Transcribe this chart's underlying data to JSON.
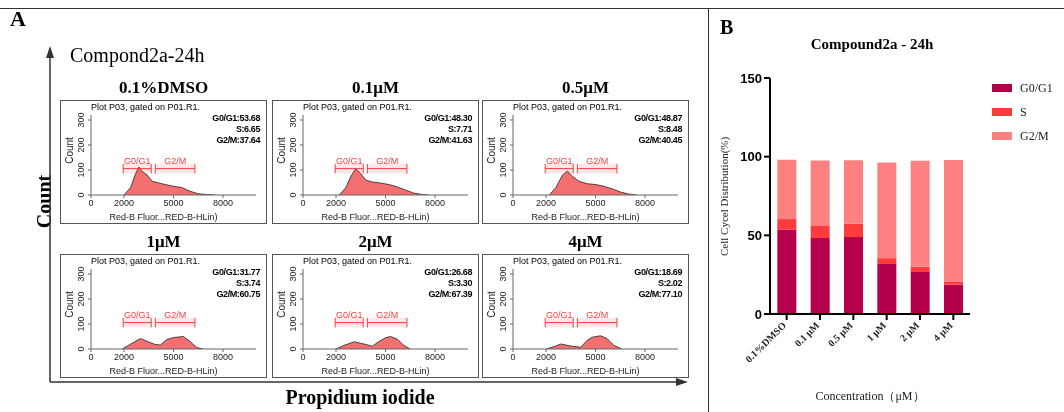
{
  "chart_data": [
    {
      "type": "other",
      "title": "Compond2a-24h",
      "xlabel": "Propidium iodide",
      "ylabel": "Count",
      "annotations": [
        "A"
      ]
    },
    {
      "type": "area",
      "title": "0.1%DMSO",
      "subtitle": "Plot P03, gated on P01.R1.",
      "xlabel": "Red-B Fluor...RED-B-HLin)",
      "ylabel": "Count",
      "annotations": [
        "G0/G1:53.68",
        "S:6.65",
        "G2/M:37.64"
      ],
      "x": [
        2000,
        2400,
        2700,
        2900,
        3100,
        3400,
        3700,
        4000,
        4500,
        5000,
        5500,
        6000,
        6500,
        7000,
        7500
      ],
      "series": [
        {
          "color": "#f47070",
          "values": [
            0,
            30,
            85,
            112,
            95,
            80,
            55,
            50,
            42,
            35,
            30,
            15,
            5,
            2,
            0
          ]
        }
      ],
      "xlim": [
        0,
        10000
      ],
      "xticks": [
        0,
        2000,
        5000,
        8000
      ],
      "ylim": [
        0,
        320
      ],
      "yticks": [
        0,
        100,
        200,
        300
      ],
      "bands": [
        {
          "axis": "x",
          "from": 1950,
          "to": 3650,
          "label": "G0/G1",
          "color": "#ff3b3b"
        },
        {
          "axis": "x",
          "from": 3900,
          "to": 6300,
          "label": "G2/M",
          "color": "#ff3b3b"
        }
      ]
    },
    {
      "type": "area",
      "title": "0.1μM",
      "subtitle": "Plot P03, gated on P01.R1.",
      "xlabel": "Red-B Fluor...RED-B-HLin)",
      "ylabel": "Count",
      "annotations": [
        "G0/G1:48.30",
        "S:7.71",
        "G2/M:41.63"
      ],
      "x": [
        2200,
        2600,
        2900,
        3200,
        3500,
        3800,
        4200,
        4700,
        5200,
        5700,
        6200,
        6700,
        7200,
        7600
      ],
      "series": [
        {
          "color": "#f47070",
          "values": [
            0,
            30,
            75,
            106,
            85,
            60,
            52,
            48,
            42,
            33,
            20,
            8,
            2,
            0
          ]
        }
      ],
      "xlim": [
        0,
        10000
      ],
      "xticks": [
        0,
        2000,
        5000,
        8000
      ],
      "ylim": [
        0,
        320
      ],
      "yticks": [
        0,
        100,
        200,
        300
      ],
      "bands": [
        {
          "axis": "x",
          "from": 1950,
          "to": 3650,
          "label": "G0/G1",
          "color": "#ff3b3b"
        },
        {
          "axis": "x",
          "from": 3900,
          "to": 6300,
          "label": "G2/M",
          "color": "#ff3b3b"
        }
      ]
    },
    {
      "type": "area",
      "title": "0.5μM",
      "subtitle": "Plot P03, gated on P01.R1.",
      "xlabel": "Red-B Fluor...RED-B-HLin)",
      "ylabel": "Count",
      "annotations": [
        "G0/G1:48.87",
        "S:8.48",
        "G2/M:40.45"
      ],
      "x": [
        2200,
        2600,
        3000,
        3300,
        3600,
        4000,
        4500,
        5000,
        5500,
        6000,
        6500,
        7000,
        7500
      ],
      "series": [
        {
          "color": "#f47070",
          "values": [
            0,
            30,
            80,
            96,
            75,
            55,
            45,
            42,
            35,
            25,
            12,
            4,
            0
          ]
        }
      ],
      "xlim": [
        0,
        10000
      ],
      "xticks": [
        0,
        2000,
        5000,
        8000
      ],
      "ylim": [
        0,
        320
      ],
      "yticks": [
        0,
        100,
        200,
        300
      ],
      "bands": [
        {
          "axis": "x",
          "from": 1950,
          "to": 3650,
          "label": "G0/G1",
          "color": "#ff3b3b"
        },
        {
          "axis": "x",
          "from": 3900,
          "to": 6300,
          "label": "G2/M",
          "color": "#ff3b3b"
        }
      ]
    },
    {
      "type": "area",
      "title": "1μM",
      "subtitle": "Plot P03, gated on P01.R1.",
      "xlabel": "Red-B Fluor...RED-B-HLin)",
      "ylabel": "Count",
      "annotations": [
        "G0/G1:31.77",
        "S:3.74",
        "G2/M:60.75"
      ],
      "x": [
        1900,
        2400,
        3000,
        3500,
        3900,
        4200,
        4600,
        5000,
        5600,
        6000,
        6400,
        6800
      ],
      "series": [
        {
          "color": "#f47070",
          "values": [
            0,
            20,
            42,
            28,
            18,
            16,
            38,
            46,
            50,
            30,
            6,
            0
          ]
        }
      ],
      "xlim": [
        0,
        10000
      ],
      "xticks": [
        0,
        2000,
        5000,
        8000
      ],
      "ylim": [
        0,
        320
      ],
      "yticks": [
        0,
        100,
        200,
        300
      ],
      "bands": [
        {
          "axis": "x",
          "from": 1950,
          "to": 3650,
          "label": "G0/G1",
          "color": "#ff3b3b"
        },
        {
          "axis": "x",
          "from": 3900,
          "to": 6300,
          "label": "G2/M",
          "color": "#ff3b3b"
        }
      ]
    },
    {
      "type": "area",
      "title": "2μM",
      "subtitle": "Plot P03, gated on P01.R1.",
      "xlabel": "Red-B Fluor...RED-B-HLin)",
      "ylabel": "Count",
      "annotations": [
        "G0/G1:26.68",
        "S:3.30",
        "G2/M:67.39"
      ],
      "x": [
        2000,
        2500,
        3100,
        3700,
        4200,
        4600,
        5000,
        5300,
        5700,
        6100,
        6500
      ],
      "series": [
        {
          "color": "#f47070",
          "values": [
            0,
            15,
            29,
            20,
            11,
            30,
            45,
            50,
            40,
            15,
            0
          ]
        }
      ],
      "xlim": [
        0,
        10000
      ],
      "xticks": [
        0,
        2000,
        5000,
        8000
      ],
      "ylim": [
        0,
        320
      ],
      "yticks": [
        0,
        100,
        200,
        300
      ],
      "bands": [
        {
          "axis": "x",
          "from": 1950,
          "to": 3650,
          "label": "G0/G1",
          "color": "#ff3b3b"
        },
        {
          "axis": "x",
          "from": 3900,
          "to": 6300,
          "label": "G2/M",
          "color": "#ff3b3b"
        }
      ]
    },
    {
      "type": "area",
      "title": "4μM",
      "subtitle": "Plot P03, gated on P01.R1.",
      "xlabel": "Red-B Fluor...RED-B-HLin)",
      "ylabel": "Count",
      "annotations": [
        "G0/G1:18.69",
        "S:2.02",
        "G2/M:77.10"
      ],
      "x": [
        2000,
        2500,
        2900,
        3500,
        4100,
        4500,
        4800,
        5300,
        5700,
        6100,
        6600
      ],
      "series": [
        {
          "color": "#f47070",
          "values": [
            0,
            10,
            20,
            12,
            7,
            35,
            47,
            53,
            42,
            15,
            0
          ]
        }
      ],
      "xlim": [
        0,
        10000
      ],
      "xticks": [
        0,
        2000,
        5000,
        8000
      ],
      "ylim": [
        0,
        320
      ],
      "yticks": [
        0,
        100,
        200,
        300
      ],
      "bands": [
        {
          "axis": "x",
          "from": 1950,
          "to": 3650,
          "label": "G0/G1",
          "color": "#ff3b3b"
        },
        {
          "axis": "x",
          "from": 3900,
          "to": 6300,
          "label": "G2/M",
          "color": "#ff3b3b"
        }
      ]
    },
    {
      "type": "bar",
      "title": "Compound2a - 24h",
      "annotations": [
        "B"
      ],
      "xlabel": "Concentration（μM）",
      "ylabel": "Cell Cycel Distribution(%)",
      "categories": [
        "0.1%DMSO",
        "0.1 μM",
        "0.5 μM",
        "1 μM",
        "2 μM",
        "4 μM"
      ],
      "stacked": true,
      "ylim": [
        0,
        150
      ],
      "yticks": [
        0,
        50,
        100,
        150
      ],
      "legend": "top right",
      "series": [
        {
          "name": "G0/G1",
          "color": "#b5004b",
          "values": [
            53.68,
            48.3,
            48.87,
            31.77,
            26.68,
            18.69
          ]
        },
        {
          "name": "S",
          "color": "#ff3b3b",
          "values": [
            6.65,
            7.71,
            8.48,
            3.74,
            3.3,
            2.02
          ]
        },
        {
          "name": "G2/M",
          "color": "#ff8080",
          "values": [
            37.64,
            41.63,
            40.45,
            60.75,
            67.39,
            77.1
          ]
        }
      ]
    }
  ]
}
